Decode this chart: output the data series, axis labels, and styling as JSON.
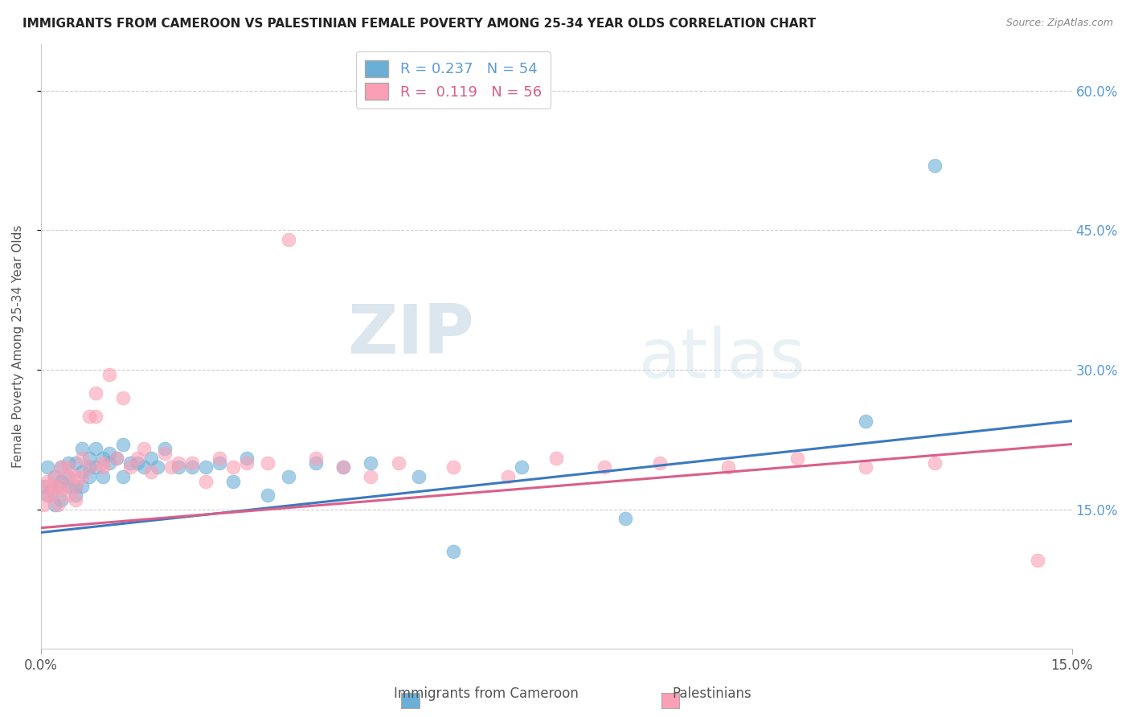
{
  "title": "IMMIGRANTS FROM CAMEROON VS PALESTINIAN FEMALE POVERTY AMONG 25-34 YEAR OLDS CORRELATION CHART",
  "source": "Source: ZipAtlas.com",
  "ylabel": "Female Poverty Among 25-34 Year Olds",
  "xlim": [
    0.0,
    0.15
  ],
  "ylim": [
    0.0,
    0.65
  ],
  "y_ticks": [
    0.15,
    0.3,
    0.45,
    0.6
  ],
  "y_tick_labels": [
    "15.0%",
    "30.0%",
    "45.0%",
    "60.0%"
  ],
  "legend_R1": "0.237",
  "legend_N1": "54",
  "legend_R2": "0.119",
  "legend_N2": "56",
  "blue_color": "#6baed6",
  "pink_color": "#fa9fb5",
  "blue_line_color": "#3a7abf",
  "pink_line_color": "#d95f8a",
  "watermark_zip": "ZIP",
  "watermark_atlas": "atlas",
  "blue_scatter_x": [
    0.0005,
    0.001,
    0.001,
    0.0015,
    0.002,
    0.002,
    0.0025,
    0.003,
    0.003,
    0.003,
    0.004,
    0.004,
    0.004,
    0.005,
    0.005,
    0.005,
    0.006,
    0.006,
    0.006,
    0.007,
    0.007,
    0.007,
    0.008,
    0.008,
    0.009,
    0.009,
    0.01,
    0.01,
    0.011,
    0.012,
    0.012,
    0.013,
    0.014,
    0.015,
    0.016,
    0.017,
    0.018,
    0.02,
    0.022,
    0.024,
    0.026,
    0.028,
    0.03,
    0.033,
    0.036,
    0.04,
    0.044,
    0.048,
    0.055,
    0.06,
    0.07,
    0.085,
    0.12,
    0.13
  ],
  "blue_scatter_y": [
    0.175,
    0.165,
    0.195,
    0.17,
    0.185,
    0.155,
    0.175,
    0.18,
    0.195,
    0.16,
    0.175,
    0.2,
    0.185,
    0.175,
    0.2,
    0.165,
    0.19,
    0.215,
    0.175,
    0.195,
    0.205,
    0.185,
    0.195,
    0.215,
    0.205,
    0.185,
    0.2,
    0.21,
    0.205,
    0.22,
    0.185,
    0.2,
    0.2,
    0.195,
    0.205,
    0.195,
    0.215,
    0.195,
    0.195,
    0.195,
    0.2,
    0.18,
    0.205,
    0.165,
    0.185,
    0.2,
    0.195,
    0.2,
    0.185,
    0.105,
    0.195,
    0.14,
    0.245,
    0.52
  ],
  "pink_scatter_x": [
    0.0004,
    0.0008,
    0.001,
    0.001,
    0.0015,
    0.002,
    0.002,
    0.0025,
    0.003,
    0.003,
    0.003,
    0.004,
    0.004,
    0.004,
    0.005,
    0.005,
    0.005,
    0.006,
    0.006,
    0.007,
    0.007,
    0.008,
    0.008,
    0.009,
    0.009,
    0.01,
    0.011,
    0.012,
    0.013,
    0.014,
    0.015,
    0.016,
    0.018,
    0.019,
    0.02,
    0.022,
    0.024,
    0.026,
    0.028,
    0.03,
    0.033,
    0.036,
    0.04,
    0.044,
    0.048,
    0.052,
    0.06,
    0.068,
    0.075,
    0.082,
    0.09,
    0.1,
    0.11,
    0.12,
    0.13,
    0.145
  ],
  "pink_scatter_y": [
    0.155,
    0.175,
    0.165,
    0.18,
    0.165,
    0.185,
    0.175,
    0.155,
    0.175,
    0.195,
    0.17,
    0.185,
    0.165,
    0.195,
    0.175,
    0.185,
    0.16,
    0.205,
    0.185,
    0.195,
    0.25,
    0.275,
    0.25,
    0.2,
    0.195,
    0.295,
    0.205,
    0.27,
    0.195,
    0.205,
    0.215,
    0.19,
    0.21,
    0.195,
    0.2,
    0.2,
    0.18,
    0.205,
    0.195,
    0.2,
    0.2,
    0.44,
    0.205,
    0.195,
    0.185,
    0.2,
    0.195,
    0.185,
    0.205,
    0.195,
    0.2,
    0.195,
    0.205,
    0.195,
    0.2,
    0.095
  ]
}
